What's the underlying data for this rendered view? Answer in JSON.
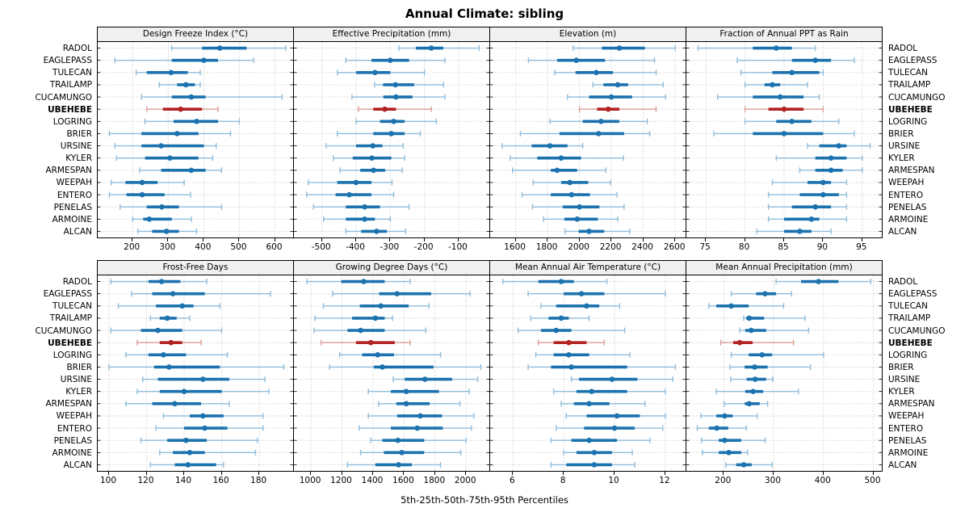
{
  "title": "Annual Climate: sibling",
  "xlabel": "5th-25th-50th-75th-95th Percentiles",
  "colors": {
    "blue_main": "#1b72ae",
    "blue_light": "#8fbcdc",
    "red_main": "#b22222",
    "red_light": "#dc9c96",
    "grid": "#c6c6c6",
    "strip_bg": "#f0f0f0",
    "border": "#000000"
  },
  "chart_data": {
    "type": "percentile-dotplot-trellis",
    "title": "Annual Climate: sibling",
    "xlabel": "5th-25th-50th-75th-95th Percentiles",
    "percentile_labels": [
      "5th",
      "25th",
      "50th",
      "75th",
      "95th"
    ],
    "stations": [
      "RADOL",
      "EAGLEPASS",
      "TULECAN",
      "TRAILAMP",
      "CUCAMUNGO",
      "UBEHEBE",
      "LOGRING",
      "BRIER",
      "URSINE",
      "KYLER",
      "ARMESPAN",
      "WEEPAH",
      "ENTERO",
      "PENELAS",
      "ARMOINE",
      "ALCAN"
    ],
    "highlight": "UBEHEBE",
    "legend_position": "none",
    "grid": "dotted",
    "panels": [
      {
        "slug": "design-freeze-index",
        "title": "Design Freeze Index (°C)",
        "ticks": [
          200,
          300,
          400,
          500,
          600
        ],
        "domain": [
          102,
          651
        ],
        "values": [
          [
            310,
            395,
            445,
            520,
            630
          ],
          [
            150,
            310,
            400,
            440,
            540
          ],
          [
            210,
            240,
            308,
            355,
            390
          ],
          [
            275,
            325,
            350,
            375,
            390
          ],
          [
            225,
            310,
            365,
            405,
            620
          ],
          [
            240,
            285,
            335,
            395,
            440
          ],
          [
            235,
            315,
            380,
            440,
            500
          ],
          [
            135,
            225,
            325,
            385,
            475
          ],
          [
            150,
            225,
            280,
            400,
            435
          ],
          [
            155,
            235,
            305,
            385,
            425
          ],
          [
            220,
            280,
            365,
            405,
            450
          ],
          [
            140,
            180,
            227,
            270,
            345
          ],
          [
            135,
            183,
            227,
            290,
            363
          ],
          [
            165,
            240,
            282,
            330,
            450
          ],
          [
            200,
            230,
            247,
            310,
            365
          ],
          [
            215,
            255,
            295,
            330,
            380
          ]
        ]
      },
      {
        "slug": "effective-precipitation",
        "title": "Effective Precipitation (mm)",
        "ticks": [
          -500,
          -400,
          -300,
          -200,
          -100
        ],
        "domain": [
          -582,
          -10
        ],
        "values": [
          [
            -275,
            -225,
            -180,
            -145,
            -40
          ],
          [
            -430,
            -355,
            -300,
            -245,
            -140
          ],
          [
            -455,
            -400,
            -345,
            -300,
            -200
          ],
          [
            -346,
            -321,
            -285,
            -230,
            -144
          ],
          [
            -412,
            -320,
            -283,
            -235,
            -140
          ],
          [
            -393,
            -350,
            -316,
            -283,
            -180
          ],
          [
            -400,
            -330,
            -290,
            -258,
            -165
          ],
          [
            -455,
            -350,
            -297,
            -258,
            -212
          ],
          [
            -488,
            -400,
            -351,
            -323,
            -262
          ],
          [
            -467,
            -410,
            -354,
            -297,
            -258
          ],
          [
            -447,
            -388,
            -349,
            -315,
            -265
          ],
          [
            -540,
            -455,
            -400,
            -355,
            -295
          ],
          [
            -545,
            -460,
            -420,
            -355,
            -290
          ],
          [
            -525,
            -430,
            -375,
            -330,
            -245
          ],
          [
            -495,
            -430,
            -375,
            -345,
            -300
          ],
          [
            -430,
            -385,
            -340,
            -310,
            -255
          ]
        ]
      },
      {
        "slug": "elevation",
        "title": "Elevation (m)",
        "ticks": [
          1600,
          1800,
          2000,
          2200,
          2400,
          2600
        ],
        "domain": [
          1440,
          2665
        ],
        "values": [
          [
            1960,
            2140,
            2250,
            2410,
            2600
          ],
          [
            1680,
            1860,
            1980,
            2160,
            2470
          ],
          [
            1845,
            1975,
            2105,
            2210,
            2480
          ],
          [
            2085,
            2150,
            2240,
            2305,
            2525
          ],
          [
            1925,
            2060,
            2200,
            2330,
            2540
          ],
          [
            2000,
            2110,
            2180,
            2250,
            2480
          ],
          [
            1815,
            2020,
            2135,
            2250,
            2425
          ],
          [
            1630,
            1875,
            2120,
            2280,
            2440
          ],
          [
            1515,
            1700,
            1815,
            1925,
            2020
          ],
          [
            1565,
            1735,
            1885,
            2010,
            2275
          ],
          [
            1580,
            1820,
            1860,
            1985,
            2165
          ],
          [
            1710,
            1885,
            1940,
            2055,
            2195
          ],
          [
            1640,
            1820,
            1950,
            2065,
            2235
          ],
          [
            1705,
            1895,
            2000,
            2125,
            2280
          ],
          [
            1775,
            1905,
            1985,
            2115,
            2240
          ],
          [
            1910,
            1995,
            2060,
            2155,
            2315
          ]
        ]
      },
      {
        "slug": "fraction-ppt-rain",
        "title": "Fraction of Annual PPT as Rain",
        "ticks": [
          75,
          80,
          85,
          90,
          95
        ],
        "domain": [
          72.5,
          97.5
        ],
        "values": [
          [
            74,
            81,
            84,
            86,
            89
          ],
          [
            79,
            86,
            89,
            91,
            94
          ],
          [
            79.5,
            83.5,
            86,
            89.5,
            90
          ],
          [
            80,
            82.5,
            83.5,
            84.5,
            88
          ],
          [
            76.5,
            81,
            84.5,
            87.5,
            89.5
          ],
          [
            80,
            83,
            85,
            87.5,
            90
          ],
          [
            80,
            84,
            86,
            88.5,
            92
          ],
          [
            76,
            81,
            85,
            90,
            94
          ],
          [
            88,
            89.5,
            92,
            93,
            96
          ],
          [
            84,
            89,
            91,
            93,
            95
          ],
          [
            87,
            89,
            91,
            92.5,
            95
          ],
          [
            83.5,
            88,
            90,
            91,
            93
          ],
          [
            83,
            87,
            90,
            92,
            93
          ],
          [
            83,
            86,
            89,
            91,
            93
          ],
          [
            83,
            85,
            88.5,
            89.5,
            93
          ],
          [
            81.5,
            85,
            87,
            88.5,
            91
          ]
        ]
      },
      {
        "slug": "frost-free-days",
        "title": "Frost-Free Days",
        "ticks": [
          100,
          120,
          140,
          160,
          180
        ],
        "domain": [
          94,
          198
        ],
        "values": [
          [
            101,
            121,
            128,
            138,
            152
          ],
          [
            112,
            123,
            134,
            151,
            186
          ],
          [
            105,
            125,
            139,
            145,
            159
          ],
          [
            122,
            127,
            131,
            136,
            143
          ],
          [
            101,
            117,
            126,
            139,
            160
          ],
          [
            115,
            127,
            133,
            139,
            149
          ],
          [
            109,
            121,
            129,
            141,
            163
          ],
          [
            100,
            124,
            132,
            159,
            193
          ],
          [
            118,
            126,
            150,
            164,
            183
          ],
          [
            115,
            127,
            140,
            160,
            185
          ],
          [
            109,
            123,
            135,
            149,
            164
          ],
          [
            129,
            143,
            150,
            161,
            182
          ],
          [
            125,
            140,
            151,
            163,
            182
          ],
          [
            117,
            131,
            141,
            152,
            179
          ],
          [
            127,
            134,
            143,
            151,
            178
          ],
          [
            122,
            135,
            142,
            157,
            161
          ]
        ]
      },
      {
        "slug": "growing-degree-days",
        "title": "Growing Degree Days (°C)",
        "ticks": [
          1000,
          1200,
          1400,
          1600,
          1800,
          2000
        ],
        "domain": [
          890,
          2150
        ],
        "values": [
          [
            975,
            1195,
            1340,
            1475,
            1640
          ],
          [
            1140,
            1440,
            1555,
            1775,
            2025
          ],
          [
            1080,
            1315,
            1450,
            1630,
            1760
          ],
          [
            1025,
            1265,
            1415,
            1475,
            1525
          ],
          [
            1020,
            1235,
            1320,
            1475,
            1740
          ],
          [
            1065,
            1290,
            1385,
            1540,
            1640
          ],
          [
            1185,
            1330,
            1430,
            1535,
            1835
          ],
          [
            1120,
            1405,
            1460,
            1790,
            2095
          ],
          [
            1530,
            1605,
            1735,
            1910,
            2075
          ],
          [
            1370,
            1515,
            1615,
            1825,
            2020
          ],
          [
            1435,
            1550,
            1615,
            1765,
            1960
          ],
          [
            1370,
            1555,
            1705,
            1845,
            2050
          ],
          [
            1310,
            1515,
            1685,
            1850,
            2035
          ],
          [
            1385,
            1460,
            1560,
            1730,
            2000
          ],
          [
            1320,
            1470,
            1585,
            1730,
            1965
          ],
          [
            1235,
            1415,
            1565,
            1650,
            1835
          ]
        ]
      },
      {
        "slug": "mean-annual-air-temperature",
        "title": "Mean Annual Air Temperature (°C)",
        "ticks": [
          6,
          8,
          10,
          12
        ],
        "domain": [
          5.1,
          12.8
        ],
        "values": [
          [
            5.6,
            7.0,
            7.9,
            8.4,
            9.7
          ],
          [
            6.6,
            8.0,
            8.7,
            9.6,
            12.0
          ],
          [
            7.1,
            7.7,
            8.9,
            9.4,
            10.2
          ],
          [
            6.7,
            7.4,
            7.9,
            8.2,
            9.0
          ],
          [
            6.2,
            7.1,
            7.7,
            8.3,
            10.4
          ],
          [
            7.0,
            7.6,
            8.2,
            8.9,
            9.6
          ],
          [
            6.9,
            7.6,
            8.2,
            9.0,
            10.6
          ],
          [
            6.6,
            7.5,
            8.3,
            10.5,
            12.4
          ],
          [
            8.3,
            8.6,
            9.9,
            10.9,
            12.3
          ],
          [
            7.6,
            8.5,
            9.1,
            10.5,
            12.0
          ],
          [
            7.9,
            8.4,
            9.0,
            9.8,
            11.2
          ],
          [
            8.1,
            8.9,
            10.1,
            11.0,
            12.0
          ],
          [
            7.7,
            8.8,
            10.0,
            10.8,
            11.9
          ],
          [
            7.5,
            8.3,
            9.0,
            10.1,
            11.4
          ],
          [
            8.0,
            8.5,
            9.2,
            9.9,
            10.7
          ],
          [
            7.5,
            8.1,
            9.2,
            9.9,
            10.8
          ]
        ]
      },
      {
        "slug": "mean-annual-precipitation",
        "title": "Mean Annual Precipitation (mm)",
        "ticks": [
          200,
          300,
          400,
          500
        ],
        "domain": [
          125,
          517
        ],
        "values": [
          [
            305,
            355,
            390,
            430,
            495
          ],
          [
            215,
            265,
            283,
            305,
            336
          ],
          [
            170,
            185,
            215,
            250,
            320
          ],
          [
            240,
            245,
            251,
            281,
            363
          ],
          [
            232,
            243,
            255,
            285,
            370
          ],
          [
            194,
            219,
            232,
            258,
            340
          ],
          [
            215,
            250,
            277,
            297,
            400
          ],
          [
            212,
            242,
            262,
            288,
            374
          ],
          [
            214,
            246,
            263,
            285,
            298
          ],
          [
            185,
            243,
            259,
            279,
            350
          ],
          [
            201,
            242,
            251,
            272,
            288
          ],
          [
            154,
            185,
            202,
            218,
            267
          ],
          [
            147,
            170,
            186,
            209,
            245
          ],
          [
            155,
            190,
            202,
            235,
            283
          ],
          [
            157,
            190,
            210,
            235,
            248
          ],
          [
            204,
            225,
            240,
            256,
            297
          ]
        ]
      }
    ]
  }
}
